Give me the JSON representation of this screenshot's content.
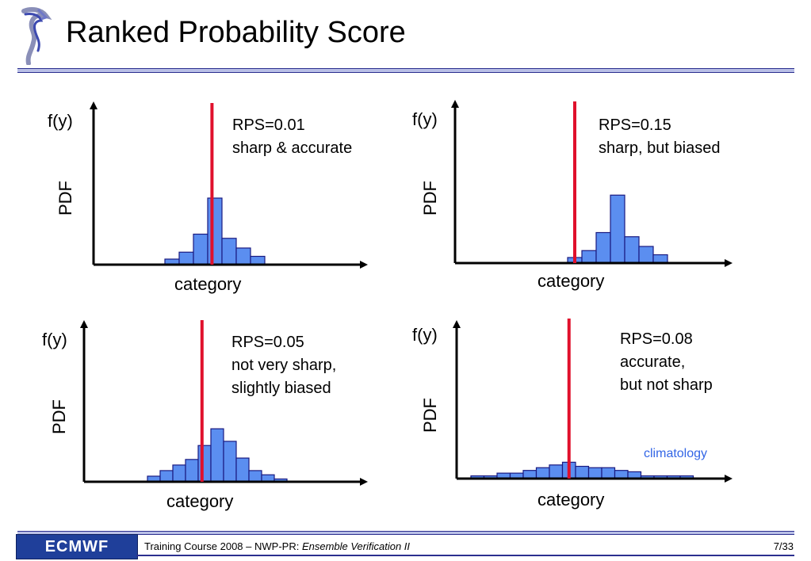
{
  "title": "Ranked Probability Score",
  "footer": {
    "logo_text": "ECMWF",
    "course": "Training Course 2008 – NWP-PR: ",
    "course_italic": "Ensemble Verification II",
    "page": "7/33"
  },
  "colors": {
    "bar_fill": "#5b8ef0",
    "bar_stroke": "#1a1a80",
    "obs_line": "#e0102c",
    "climatology": "#3366e6"
  },
  "chart_data": [
    {
      "type": "bar",
      "ylabel": "f(y)",
      "ylabel2": "PDF",
      "xlabel": "category",
      "rps_line1": "RPS=0.01",
      "rps_line2": "sharp & accurate",
      "rps_line3": "",
      "ylim": [
        0,
        1
      ],
      "values": [
        0.04,
        0.09,
        0.22,
        0.48,
        0.19,
        0.12,
        0.06
      ],
      "bins_offset": 0,
      "observation_bin": 3.3
    },
    {
      "type": "bar",
      "ylabel": "f(y)",
      "ylabel2": "PDF",
      "xlabel": "category",
      "rps_line1": "RPS=0.15",
      "rps_line2": "sharp, but biased",
      "rps_line3": "",
      "ylim": [
        0,
        1
      ],
      "values": [
        0.04,
        0.09,
        0.22,
        0.49,
        0.19,
        0.12,
        0.06
      ],
      "bins_offset": 0,
      "observation_bin": 0.5
    },
    {
      "type": "bar",
      "ylabel": "f(y)",
      "ylabel2": "PDF",
      "xlabel": "category",
      "rps_line1": "RPS=0.05",
      "rps_line2": "not very sharp,",
      "rps_line3": "slightly biased",
      "ylim": [
        0,
        1
      ],
      "values": [
        0.04,
        0.08,
        0.12,
        0.16,
        0.26,
        0.38,
        0.29,
        0.17,
        0.08,
        0.05,
        0.02
      ],
      "bins_offset": 0,
      "observation_bin": 4.3
    },
    {
      "type": "bar",
      "ylabel": "f(y)",
      "ylabel2": "PDF",
      "xlabel": "category",
      "rps_line1": "RPS=0.08",
      "rps_line2": "accurate,",
      "rps_line3": "but not sharp",
      "annotation": "climatology",
      "ylim": [
        0,
        1
      ],
      "values": [
        0.02,
        0.02,
        0.04,
        0.04,
        0.06,
        0.08,
        0.1,
        0.12,
        0.09,
        0.08,
        0.08,
        0.06,
        0.05,
        0.02,
        0.02,
        0.02,
        0.02
      ],
      "bins_offset": 0,
      "observation_bin": 7.5
    }
  ]
}
